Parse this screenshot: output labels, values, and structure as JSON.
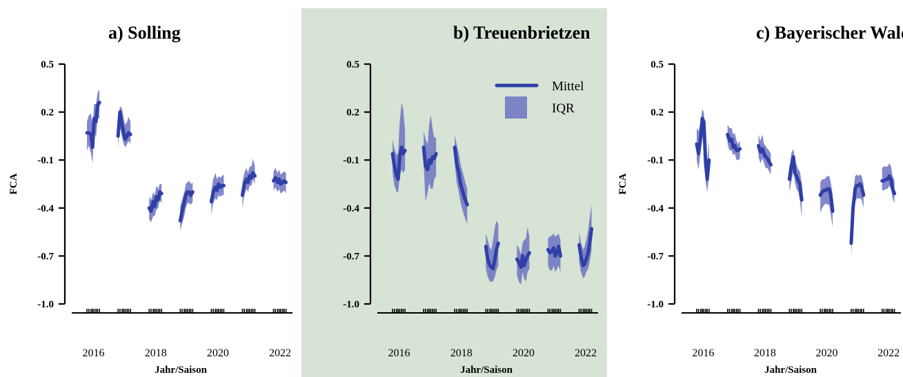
{
  "colors": {
    "mean": "#2f3fa6",
    "iqr": "#6d73c2",
    "highlight_panel": "#d6e3d5",
    "axis": "#000000"
  },
  "legend": {
    "mean_label": "Mittel",
    "iqr_label": "IQR"
  },
  "chart_data": [
    {
      "type": "line",
      "title": "a) Solling",
      "xlabel": "Jahr/Saison",
      "ylabel": "FCA",
      "ylim": [
        -1.0,
        0.5
      ],
      "yticks": [
        "0.5",
        "0.2",
        "-0.1",
        "-0.4",
        "-0.7",
        "-1.0"
      ],
      "xlim": [
        2015.5,
        2022.6
      ],
      "xticks": [
        "2016",
        "2018",
        "2020",
        "2022"
      ],
      "highlight": false,
      "legend": false,
      "segments": [
        {
          "x": [
            2015.99,
            2016.05,
            2016.12,
            2016.17,
            2016.22,
            2016.28,
            2016.33,
            2016.39
          ],
          "mean": [
            0.07,
            0.07,
            0.06,
            -0.02,
            0.16,
            0.14,
            0.24,
            0.26
          ],
          "q1": [
            -0.04,
            -0.01,
            -0.06,
            -0.12,
            0.08,
            0.04,
            0.16,
            0.16
          ],
          "q3": [
            0.14,
            0.18,
            0.19,
            0.12,
            0.25,
            0.25,
            0.32,
            0.34
          ]
        },
        {
          "x": [
            2016.99,
            2017.05,
            2017.12,
            2017.17,
            2017.22,
            2017.28,
            2017.33,
            2017.39
          ],
          "mean": [
            0.05,
            0.2,
            0.12,
            0.07,
            0.03,
            0.05,
            0.07,
            0.06
          ],
          "q1": [
            -0.02,
            0.11,
            0.04,
            0.0,
            -0.02,
            0.0,
            0.02,
            0.0
          ],
          "q3": [
            0.11,
            0.24,
            0.22,
            0.16,
            0.12,
            0.14,
            0.17,
            0.14
          ]
        },
        {
          "x": [
            2017.99,
            2018.05,
            2018.12,
            2018.17,
            2018.22,
            2018.28,
            2018.33,
            2018.39
          ],
          "mean": [
            -0.4,
            -0.42,
            -0.36,
            -0.39,
            -0.33,
            -0.35,
            -0.3,
            -0.31
          ],
          "q1": [
            -0.47,
            -0.49,
            -0.45,
            -0.45,
            -0.41,
            -0.4,
            -0.35,
            -0.37
          ],
          "q3": [
            -0.33,
            -0.35,
            -0.3,
            -0.32,
            -0.26,
            -0.28,
            -0.25,
            -0.25
          ]
        },
        {
          "x": [
            2018.99,
            2019.05,
            2019.12,
            2019.17,
            2019.22,
            2019.28,
            2019.33,
            2019.39
          ],
          "mean": [
            -0.48,
            -0.42,
            -0.36,
            -0.32,
            -0.3,
            -0.3,
            -0.32,
            -0.3
          ],
          "q1": [
            -0.54,
            -0.5,
            -0.45,
            -0.4,
            -0.37,
            -0.37,
            -0.38,
            -0.36
          ],
          "q3": [
            -0.39,
            -0.35,
            -0.3,
            -0.25,
            -0.24,
            -0.23,
            -0.25,
            -0.24
          ]
        },
        {
          "x": [
            2019.99,
            2020.05,
            2020.12,
            2020.17,
            2020.22,
            2020.28,
            2020.33,
            2020.39
          ],
          "mean": [
            -0.36,
            -0.3,
            -0.27,
            -0.29,
            -0.25,
            -0.27,
            -0.26,
            -0.26
          ],
          "q1": [
            -0.44,
            -0.37,
            -0.34,
            -0.35,
            -0.32,
            -0.33,
            -0.32,
            -0.32
          ],
          "q3": [
            -0.29,
            -0.22,
            -0.18,
            -0.22,
            -0.2,
            -0.21,
            -0.2,
            -0.19
          ]
        },
        {
          "x": [
            2020.99,
            2021.05,
            2021.12,
            2021.17,
            2021.22,
            2021.28,
            2021.33,
            2021.39
          ],
          "mean": [
            -0.32,
            -0.25,
            -0.22,
            -0.24,
            -0.2,
            -0.21,
            -0.18,
            -0.2
          ],
          "q1": [
            -0.4,
            -0.32,
            -0.28,
            -0.3,
            -0.26,
            -0.26,
            -0.22,
            -0.25
          ],
          "q3": [
            -0.24,
            -0.18,
            -0.15,
            -0.18,
            -0.14,
            -0.14,
            -0.09,
            -0.14
          ]
        },
        {
          "x": [
            2021.99,
            2022.05,
            2022.12,
            2022.17,
            2022.22,
            2022.28,
            2022.33,
            2022.39
          ],
          "mean": [
            -0.23,
            -0.21,
            -0.24,
            -0.22,
            -0.25,
            -0.24,
            -0.23,
            -0.24
          ],
          "q1": [
            -0.29,
            -0.27,
            -0.3,
            -0.28,
            -0.31,
            -0.3,
            -0.29,
            -0.31
          ],
          "q3": [
            -0.17,
            -0.15,
            -0.18,
            -0.16,
            -0.19,
            -0.18,
            -0.17,
            -0.18
          ]
        }
      ]
    },
    {
      "type": "line",
      "title": "b) Treuenbrietzen",
      "xlabel": "Jahr/Saison",
      "ylabel": "",
      "ylim": [
        -1.0,
        0.5
      ],
      "yticks": [
        "0.5",
        "0.2",
        "-0.1",
        "-0.4",
        "-0.7",
        "-1.0"
      ],
      "xlim": [
        2015.5,
        2022.6
      ],
      "xticks": [
        "2016",
        "2018",
        "2020",
        "2022"
      ],
      "highlight": true,
      "legend": true,
      "segments": [
        {
          "x": [
            2015.99,
            2016.05,
            2016.12,
            2016.17,
            2016.22,
            2016.28,
            2016.33,
            2016.39
          ],
          "mean": [
            -0.06,
            -0.14,
            -0.2,
            -0.22,
            -0.08,
            -0.02,
            -0.06,
            -0.04
          ],
          "q1": [
            -0.18,
            -0.26,
            -0.3,
            -0.3,
            -0.2,
            -0.16,
            -0.18,
            -0.16
          ],
          "q3": [
            0.03,
            -0.03,
            -0.07,
            -0.05,
            0.14,
            0.26,
            0.22,
            0.09
          ]
        },
        {
          "x": [
            2016.99,
            2017.05,
            2017.12,
            2017.17,
            2017.22,
            2017.28,
            2017.33,
            2017.39
          ],
          "mean": [
            -0.02,
            -0.14,
            -0.16,
            -0.1,
            -0.12,
            -0.08,
            -0.09,
            -0.06
          ],
          "q1": [
            -0.12,
            -0.36,
            -0.3,
            -0.24,
            -0.28,
            -0.28,
            -0.22,
            -0.2
          ],
          "q3": [
            0.08,
            0.03,
            0.0,
            0.13,
            0.18,
            0.09,
            0.04,
            0.04
          ]
        },
        {
          "x": [
            2017.99,
            2018.05,
            2018.12,
            2018.17,
            2018.22,
            2018.28,
            2018.33,
            2018.39
          ],
          "mean": [
            -0.02,
            -0.12,
            -0.18,
            -0.24,
            -0.28,
            -0.32,
            -0.35,
            -0.38
          ],
          "q1": [
            -0.12,
            -0.24,
            -0.3,
            -0.36,
            -0.4,
            -0.44,
            -0.47,
            -0.5
          ],
          "q3": [
            0.06,
            0.0,
            -0.06,
            -0.12,
            -0.16,
            -0.2,
            -0.24,
            -0.28
          ]
        },
        {
          "x": [
            2018.99,
            2019.05,
            2019.12,
            2019.17,
            2019.22,
            2019.28,
            2019.33,
            2019.39
          ],
          "mean": [
            -0.64,
            -0.72,
            -0.76,
            -0.77,
            -0.78,
            -0.72,
            -0.66,
            -0.62
          ],
          "q1": [
            -0.78,
            -0.83,
            -0.86,
            -0.86,
            -0.86,
            -0.83,
            -0.79,
            -0.76
          ],
          "q3": [
            -0.56,
            -0.6,
            -0.65,
            -0.66,
            -0.6,
            -0.52,
            -0.48,
            -0.5
          ]
        },
        {
          "x": [
            2019.99,
            2020.05,
            2020.12,
            2020.17,
            2020.22,
            2020.28,
            2020.33,
            2020.39
          ],
          "mean": [
            -0.72,
            -0.74,
            -0.77,
            -0.7,
            -0.76,
            -0.72,
            -0.7,
            -0.68
          ],
          "q1": [
            -0.82,
            -0.86,
            -0.88,
            -0.8,
            -0.84,
            -0.86,
            -0.8,
            -0.78
          ],
          "q3": [
            -0.63,
            -0.65,
            -0.69,
            -0.62,
            -0.6,
            -0.59,
            -0.52,
            -0.58
          ]
        },
        {
          "x": [
            2020.99,
            2021.05,
            2021.12,
            2021.17,
            2021.22,
            2021.28,
            2021.33,
            2021.39
          ],
          "mean": [
            -0.66,
            -0.68,
            -0.67,
            -0.65,
            -0.7,
            -0.68,
            -0.64,
            -0.7
          ],
          "q1": [
            -0.76,
            -0.79,
            -0.79,
            -0.76,
            -0.8,
            -0.78,
            -0.76,
            -0.8
          ],
          "q3": [
            -0.59,
            -0.58,
            -0.57,
            -0.56,
            -0.58,
            -0.57,
            -0.56,
            -0.6
          ]
        },
        {
          "x": [
            2021.99,
            2022.05,
            2022.12,
            2022.17,
            2022.22,
            2022.28,
            2022.33,
            2022.39
          ],
          "mean": [
            -0.63,
            -0.7,
            -0.76,
            -0.75,
            -0.72,
            -0.68,
            -0.62,
            -0.53
          ],
          "q1": [
            -0.74,
            -0.8,
            -0.84,
            -0.83,
            -0.8,
            -0.78,
            -0.74,
            -0.66
          ],
          "q3": [
            -0.55,
            -0.62,
            -0.66,
            -0.64,
            -0.6,
            -0.54,
            -0.46,
            -0.38
          ]
        }
      ]
    },
    {
      "type": "line",
      "title": "c) Bayerischer Wald",
      "xlabel": "Jahr/Saison",
      "ylabel": "FCA",
      "ylim": [
        -1.0,
        0.5
      ],
      "yticks": [
        "0.5",
        "0.2",
        "-0.1",
        "-0.4",
        "-0.7",
        "-1.0"
      ],
      "xlim": [
        2015.5,
        2022.6
      ],
      "xticks": [
        "2016",
        "2018",
        "2020",
        "2022"
      ],
      "highlight": false,
      "legend": false,
      "segments": [
        {
          "x": [
            2015.99,
            2016.05,
            2016.12,
            2016.17,
            2016.22,
            2016.28,
            2016.33,
            2016.39
          ],
          "mean": [
            0.0,
            -0.06,
            0.04,
            0.16,
            0.14,
            -0.12,
            -0.22,
            -0.1
          ],
          "q1": [
            -0.1,
            -0.16,
            -0.04,
            0.06,
            0.02,
            -0.24,
            -0.3,
            -0.2
          ],
          "q3": [
            0.1,
            0.08,
            0.14,
            0.22,
            0.2,
            -0.02,
            -0.1,
            0.02
          ]
        },
        {
          "x": [
            2016.99,
            2017.05,
            2017.12,
            2017.17,
            2017.22,
            2017.28,
            2017.33,
            2017.39
          ],
          "mean": [
            0.06,
            0.02,
            0.03,
            -0.02,
            -0.01,
            -0.04,
            -0.04,
            -0.03
          ],
          "q1": [
            0.0,
            -0.04,
            -0.04,
            -0.07,
            -0.06,
            -0.1,
            -0.1,
            -0.09
          ],
          "q3": [
            0.12,
            0.1,
            0.1,
            0.06,
            0.07,
            0.02,
            0.0,
            0.02
          ]
        },
        {
          "x": [
            2017.99,
            2018.05,
            2018.12,
            2018.17,
            2018.22,
            2018.28,
            2018.33,
            2018.39
          ],
          "mean": [
            -0.01,
            -0.05,
            -0.03,
            -0.06,
            -0.08,
            -0.09,
            -0.11,
            -0.13
          ],
          "q1": [
            -0.08,
            -0.12,
            -0.09,
            -0.12,
            -0.15,
            -0.15,
            -0.17,
            -0.19
          ],
          "q3": [
            0.06,
            0.02,
            0.06,
            0.0,
            -0.01,
            -0.03,
            -0.04,
            -0.06
          ]
        },
        {
          "x": [
            2018.99,
            2019.05,
            2019.12,
            2019.17,
            2019.22,
            2019.28,
            2019.33,
            2019.39
          ],
          "mean": [
            -0.22,
            -0.14,
            -0.08,
            -0.18,
            -0.2,
            -0.23,
            -0.25,
            -0.35
          ],
          "q1": [
            -0.3,
            -0.24,
            -0.17,
            -0.24,
            -0.28,
            -0.3,
            -0.35,
            -0.46
          ],
          "q3": [
            -0.16,
            -0.06,
            -0.03,
            -0.1,
            -0.13,
            -0.16,
            -0.17,
            -0.25
          ]
        },
        {
          "x": [
            2019.99,
            2020.05,
            2020.12,
            2020.17,
            2020.22,
            2020.28,
            2020.33,
            2020.39
          ],
          "mean": [
            -0.32,
            -0.3,
            -0.29,
            -0.29,
            -0.28,
            -0.28,
            -0.32,
            -0.42
          ],
          "q1": [
            -0.43,
            -0.4,
            -0.38,
            -0.37,
            -0.38,
            -0.38,
            -0.44,
            -0.52
          ],
          "q3": [
            -0.24,
            -0.22,
            -0.22,
            -0.21,
            -0.2,
            -0.2,
            -0.24,
            -0.32
          ]
        },
        {
          "x": [
            2020.99,
            2021.05,
            2021.12,
            2021.17,
            2021.22,
            2021.28,
            2021.33,
            2021.39
          ],
          "mean": [
            -0.62,
            -0.4,
            -0.28,
            -0.26,
            -0.26,
            -0.25,
            -0.27,
            -0.32
          ],
          "q1": [
            -0.7,
            -0.5,
            -0.36,
            -0.34,
            -0.34,
            -0.34,
            -0.35,
            -0.4
          ],
          "q3": [
            -0.52,
            -0.3,
            -0.2,
            -0.19,
            -0.2,
            -0.19,
            -0.2,
            -0.25
          ]
        },
        {
          "x": [
            2021.99,
            2022.05,
            2022.12,
            2022.17,
            2022.22,
            2022.28,
            2022.33,
            2022.39
          ],
          "mean": [
            -0.23,
            -0.23,
            -0.22,
            -0.22,
            -0.2,
            -0.22,
            -0.28,
            -0.31
          ],
          "q1": [
            -0.29,
            -0.29,
            -0.28,
            -0.28,
            -0.26,
            -0.28,
            -0.34,
            -0.37
          ],
          "q3": [
            -0.15,
            -0.14,
            -0.14,
            -0.14,
            -0.12,
            -0.14,
            -0.2,
            -0.23
          ]
        }
      ]
    }
  ]
}
